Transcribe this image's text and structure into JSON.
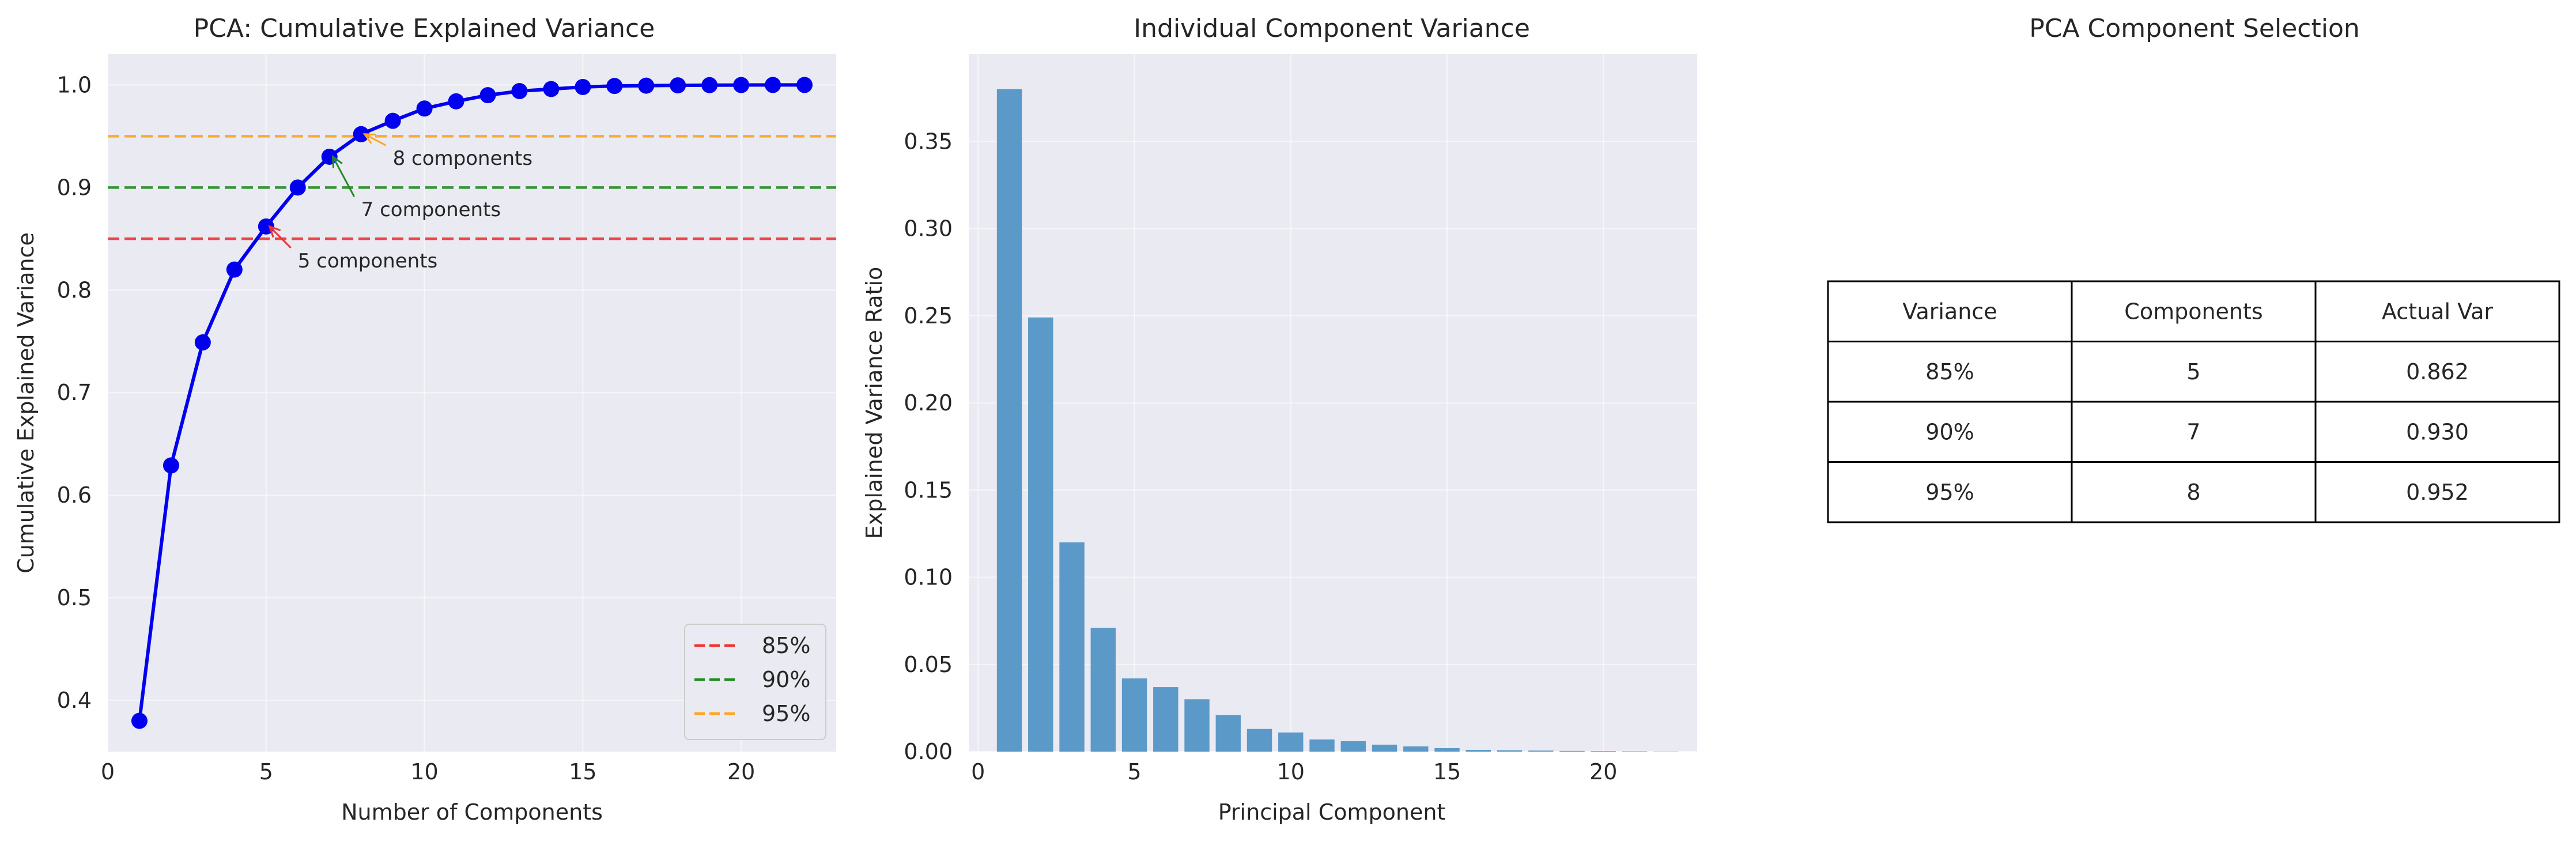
{
  "chart_data": [
    {
      "type": "line",
      "title": "PCA: Cumulative Explained Variance",
      "xlabel": "Number of Components",
      "ylabel": "Cumulative Explained Variance",
      "xlim": [
        0,
        23
      ],
      "ylim": [
        0.35,
        1.03
      ],
      "xticks": [
        0,
        5,
        10,
        15,
        20
      ],
      "yticks": [
        0.4,
        0.5,
        0.6,
        0.7,
        0.8,
        0.9,
        1.0
      ],
      "grid": true,
      "x": [
        1,
        2,
        3,
        4,
        5,
        6,
        7,
        8,
        9,
        10,
        11,
        12,
        13,
        14,
        15,
        16,
        17,
        18,
        19,
        20,
        21,
        22
      ],
      "y": [
        0.38,
        0.629,
        0.749,
        0.82,
        0.862,
        0.9,
        0.93,
        0.952,
        0.965,
        0.977,
        0.984,
        0.99,
        0.994,
        0.996,
        0.998,
        0.999,
        0.9993,
        0.9996,
        0.9998,
        0.9999,
        1.0,
        1.0
      ],
      "line_color": "#0000ee",
      "thresholds": [
        {
          "name": "85%",
          "value": 0.85,
          "color": "#ee3333"
        },
        {
          "name": "90%",
          "value": 0.9,
          "color": "#228b22"
        },
        {
          "name": "95%",
          "value": 0.95,
          "color": "#ffa520"
        }
      ],
      "annotations": [
        {
          "text": "5 components",
          "x": 5,
          "y": 0.862,
          "text_x": 6,
          "text_y": 0.822,
          "color": "#ee3333"
        },
        {
          "text": "7 components",
          "x": 7,
          "y": 0.93,
          "text_x": 8,
          "text_y": 0.872,
          "color": "#228b22"
        },
        {
          "text": "8 components",
          "x": 8,
          "y": 0.952,
          "text_x": 9,
          "text_y": 0.922,
          "color": "#ffa520"
        }
      ],
      "legend": {
        "position": "lower-right",
        "entries": [
          "85%",
          "90%",
          "95%"
        ]
      }
    },
    {
      "type": "bar",
      "title": "Individual Component Variance",
      "xlabel": "Principal Component",
      "ylabel": "Explained Variance Ratio",
      "xlim": [
        -0.3,
        23
      ],
      "ylim": [
        0,
        0.4
      ],
      "xticks": [
        0,
        5,
        10,
        15,
        20
      ],
      "yticks": [
        0.0,
        0.05,
        0.1,
        0.15,
        0.2,
        0.25,
        0.3,
        0.35
      ],
      "ytick_labels": [
        "0.00",
        "0.05",
        "0.10",
        "0.15",
        "0.20",
        "0.25",
        "0.30",
        "0.35"
      ],
      "grid": true,
      "bar_color": "#5b9ac8",
      "categories": [
        1,
        2,
        3,
        4,
        5,
        6,
        7,
        8,
        9,
        10,
        11,
        12,
        13,
        14,
        15,
        16,
        17,
        18,
        19,
        20,
        21,
        22
      ],
      "values": [
        0.38,
        0.249,
        0.12,
        0.071,
        0.042,
        0.037,
        0.03,
        0.021,
        0.013,
        0.011,
        0.007,
        0.006,
        0.004,
        0.003,
        0.002,
        0.001,
        0.0008,
        0.0006,
        0.0004,
        0.0003,
        0.0002,
        0.0001
      ]
    },
    {
      "type": "table",
      "title": "PCA Component Selection",
      "columns": [
        "Variance",
        "Components",
        "Actual Var"
      ],
      "rows": [
        [
          "85%",
          "5",
          "0.862"
        ],
        [
          "90%",
          "7",
          "0.930"
        ],
        [
          "95%",
          "8",
          "0.952"
        ]
      ]
    }
  ]
}
